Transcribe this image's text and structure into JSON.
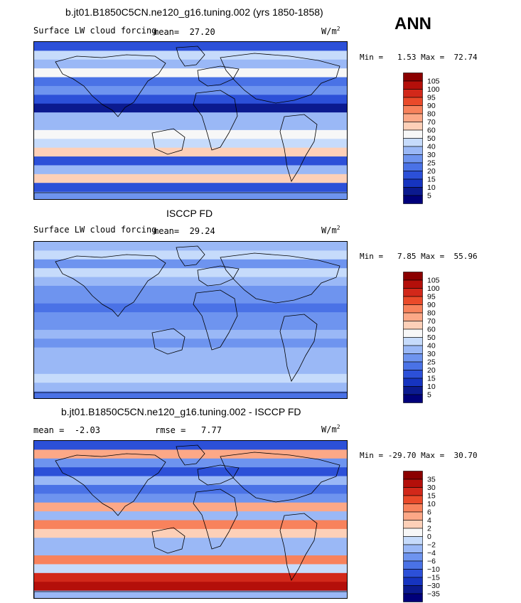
{
  "annual_label": "ANN",
  "chart_data": [
    {
      "type": "heatmap",
      "title": "b.jt01.B1850C5CN.ne120_g16.tuning.002 (yrs 1850-1858)",
      "field": "Surface LW cloud forcing",
      "mean_label": "mean=",
      "mean": "27.20",
      "units": "W/m",
      "units_exp": "2",
      "min_label": "Min =",
      "min": "1.53",
      "max_label": "Max =",
      "max": "72.74",
      "colorbar": {
        "levels": [
          "105",
          "100",
          "95",
          "90",
          "80",
          "70",
          "60",
          "50",
          "40",
          "30",
          "25",
          "20",
          "15",
          "10",
          "5"
        ],
        "colors": [
          "#8b0000",
          "#b40f0a",
          "#d2281a",
          "#ea4a2a",
          "#f8825c",
          "#fca887",
          "#fdd0b8",
          "#f7f7f7",
          "#c6dbfb",
          "#9ab8f6",
          "#6e94ef",
          "#4a72e6",
          "#2c50d8",
          "#1634c0",
          "#0b1a8f",
          "#00007a"
        ]
      },
      "band_levels": [
        12,
        8,
        9,
        7,
        11,
        10,
        12,
        14,
        9,
        9,
        7,
        8,
        6,
        12,
        9,
        6,
        12,
        10
      ]
    },
    {
      "type": "heatmap",
      "title": "ISCCP FD",
      "field": "Surface LW cloud forcing",
      "mean_label": "mean=",
      "mean": "29.24",
      "units": "W/m",
      "units_exp": "2",
      "min_label": "Min =",
      "min": "7.85",
      "max_label": "Max =",
      "max": "55.96",
      "colorbar": {
        "levels": [
          "105",
          "100",
          "95",
          "90",
          "80",
          "70",
          "60",
          "50",
          "40",
          "30",
          "25",
          "20",
          "15",
          "10",
          "5"
        ],
        "colors": [
          "#8b0000",
          "#b40f0a",
          "#d2281a",
          "#ea4a2a",
          "#f8825c",
          "#fca887",
          "#fdd0b8",
          "#f7f7f7",
          "#c6dbfb",
          "#9ab8f6",
          "#6e94ef",
          "#4a72e6",
          "#2c50d8",
          "#1634c0",
          "#0b1a8f",
          "#00007a"
        ]
      },
      "band_levels": [
        9,
        8,
        10,
        8,
        9,
        10,
        10,
        11,
        10,
        10,
        9,
        10,
        9,
        9,
        9,
        8,
        9,
        11
      ]
    },
    {
      "type": "heatmap",
      "title": "b.jt01.B1850C5CN.ne120_g16.tuning.002 - ISCCP FD",
      "mean_label": "mean =",
      "mean": "-2.03",
      "rmse_label": "rmse =",
      "rmse": "7.77",
      "units": "W/m",
      "units_exp": "2",
      "min_label": "Min =",
      "min": "-29.70",
      "max_label": "Max =",
      "max": "30.70",
      "colorbar": {
        "levels": [
          "35",
          "30",
          "15",
          "10",
          "6",
          "4",
          "2",
          "0",
          "−2",
          "−4",
          "−6",
          "−10",
          "−15",
          "−30",
          "−35"
        ],
        "colors": [
          "#8b0000",
          "#b40f0a",
          "#d2281a",
          "#ea4a2a",
          "#f8825c",
          "#fca887",
          "#fdd0b8",
          "#f7f7f7",
          "#c6dbfb",
          "#9ab8f6",
          "#6e94ef",
          "#4a72e6",
          "#2c50d8",
          "#1634c0",
          "#0b1a8f",
          "#00007a"
        ]
      },
      "band_levels": [
        12,
        5,
        10,
        12,
        9,
        11,
        10,
        5,
        9,
        4,
        6,
        9,
        9,
        4,
        8,
        2,
        1,
        9
      ]
    }
  ]
}
